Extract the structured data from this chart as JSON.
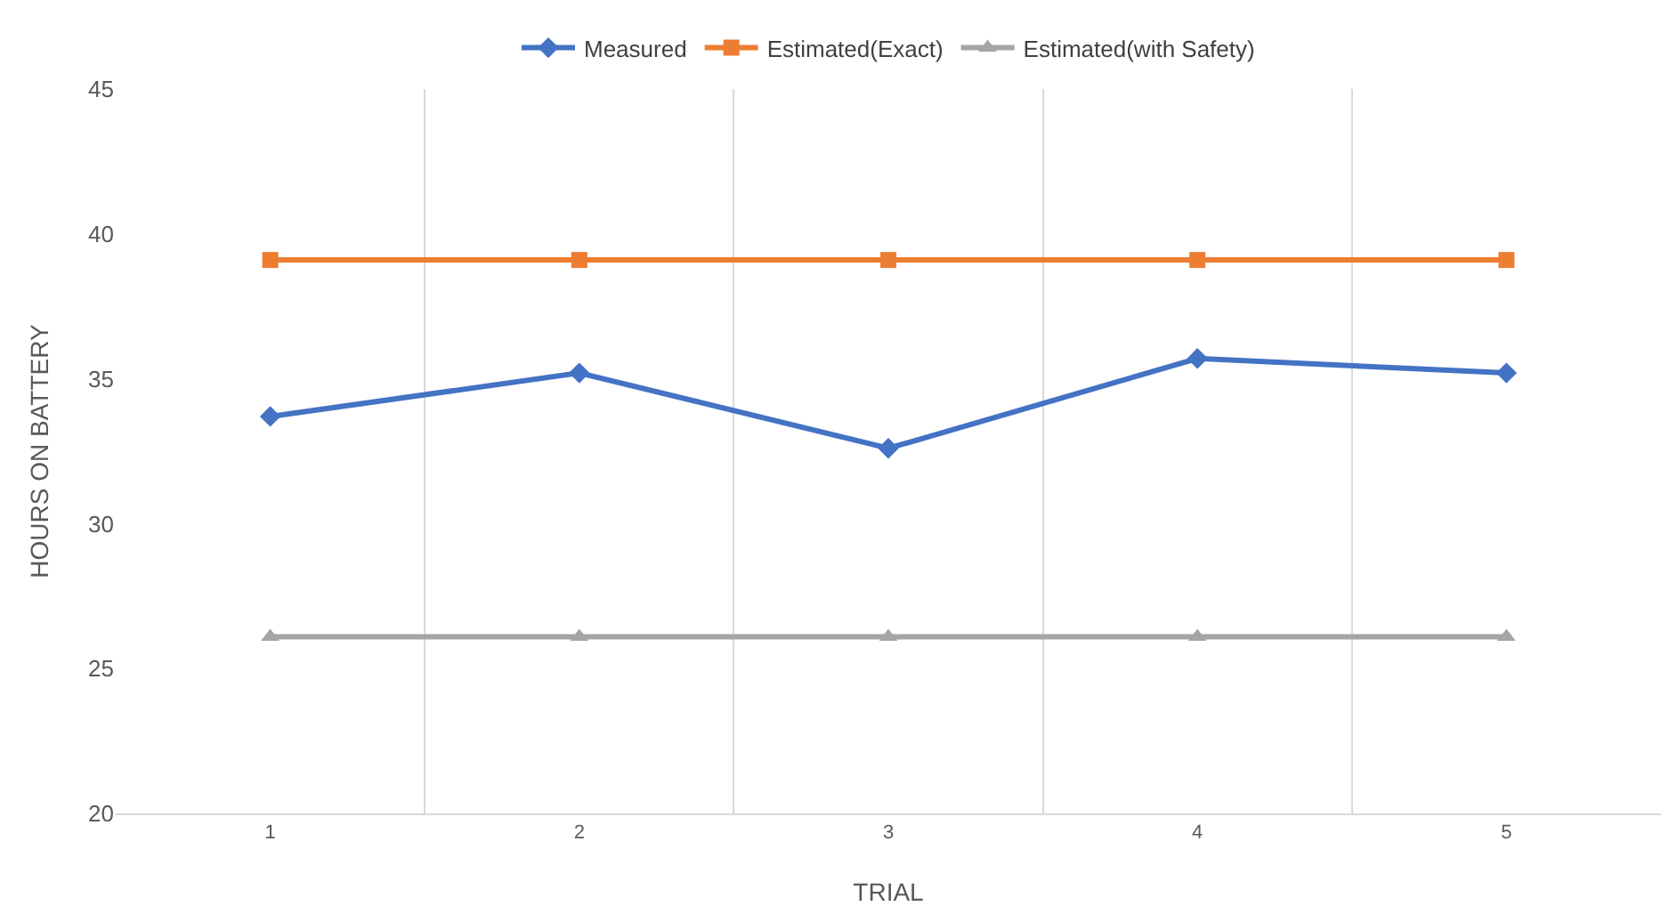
{
  "chart_data": {
    "type": "line",
    "xlabel": "TRIAL",
    "ylabel": "HOURS ON BATTERY",
    "categories": [
      "1",
      "2",
      "3",
      "4",
      "5"
    ],
    "series": [
      {
        "name": "Measured",
        "color": "#4472c4",
        "marker": "diamond",
        "values": [
          33.7,
          35.2,
          32.6,
          35.7,
          35.2
        ]
      },
      {
        "name": "Estimated(Exact)",
        "color": "#ed7d31",
        "marker": "square",
        "values": [
          39.1,
          39.1,
          39.1,
          39.1,
          39.1
        ]
      },
      {
        "name": "Estimated(with Safety)",
        "color": "#a5a5a5",
        "marker": "triangle",
        "values": [
          26.1,
          26.1,
          26.1,
          26.1,
          26.1
        ]
      }
    ],
    "ylim": [
      20,
      45
    ],
    "yticks": [
      20,
      25,
      30,
      35,
      40,
      45
    ],
    "grid": "x",
    "legend": "top",
    "line_style": "solid"
  }
}
